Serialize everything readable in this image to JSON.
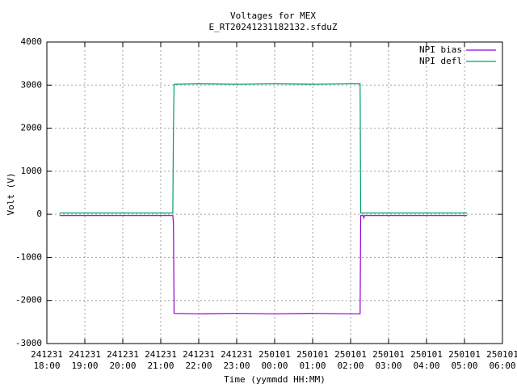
{
  "chart_data": {
    "type": "line",
    "title": "Voltages for MEX",
    "subtitle": "E_RT20241231182132.sfduZ",
    "x_label": "Time (yymmdd HH:MM)",
    "y_label": "Volt (V)",
    "xlim": [
      "241231 18:00",
      "250101 06:00"
    ],
    "xticks": [
      {
        "date": "241231",
        "time": "18:00"
      },
      {
        "date": "241231",
        "time": "19:00"
      },
      {
        "date": "241231",
        "time": "20:00"
      },
      {
        "date": "241231",
        "time": "21:00"
      },
      {
        "date": "241231",
        "time": "22:00"
      },
      {
        "date": "241231",
        "time": "23:00"
      },
      {
        "date": "250101",
        "time": "00:00"
      },
      {
        "date": "250101",
        "time": "01:00"
      },
      {
        "date": "250101",
        "time": "02:00"
      },
      {
        "date": "250101",
        "time": "03:00"
      },
      {
        "date": "250101",
        "time": "04:00"
      },
      {
        "date": "250101",
        "time": "05:00"
      },
      {
        "date": "250101",
        "time": "06:00"
      }
    ],
    "ylim": [
      -3000,
      4000
    ],
    "yticks": [
      -3000,
      -2000,
      -1000,
      0,
      1000,
      2000,
      3000,
      4000
    ],
    "grid": true,
    "legend": "top-right",
    "series": [
      {
        "name": "NPI bias",
        "color": "#9400d3",
        "x": [
          "241231 18:20",
          "241231 21:19",
          "241231 21:20",
          "241231 21:21",
          "241231 22:00",
          "241231 23:00",
          "250101 00:00",
          "250101 01:00",
          "250101 02:00",
          "250101 02:15",
          "250101 02:16",
          "250101 02:20",
          "250101 02:21",
          "250101 02:22",
          "250101 03:30",
          "250101 05:04"
        ],
        "values": [
          -30,
          -30,
          -200,
          -2300,
          -2310,
          -2300,
          -2310,
          -2300,
          -2310,
          -2310,
          -30,
          -30,
          -80,
          -30,
          -30,
          -30
        ]
      },
      {
        "name": "NPI defl",
        "color": "#009e73",
        "x": [
          "241231 18:20",
          "241231 21:19",
          "241231 21:20",
          "241231 21:21",
          "241231 22:00",
          "241231 23:00",
          "250101 00:00",
          "250101 01:00",
          "250101 02:00",
          "250101 02:15",
          "250101 02:16",
          "250101 05:04"
        ],
        "values": [
          30,
          30,
          2000,
          3020,
          3030,
          3020,
          3030,
          3020,
          3030,
          3030,
          30,
          30
        ]
      }
    ]
  }
}
